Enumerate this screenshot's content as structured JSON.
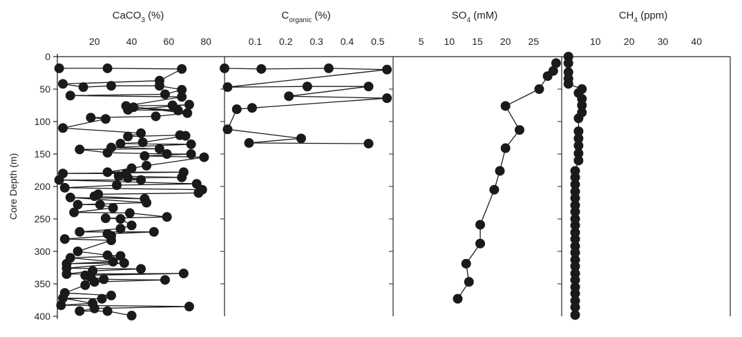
{
  "y_axis": {
    "label": "Core Depth (m)",
    "ticks": [
      0,
      50,
      100,
      150,
      200,
      250,
      300,
      350,
      400
    ],
    "range": [
      0,
      400
    ],
    "inverted": true
  },
  "style": {
    "marker_color": "#1a1a1a",
    "line_color": "#1a1a1a",
    "axis_color": "#222222"
  },
  "chart_data": [
    {
      "type": "line",
      "panel": "caco3",
      "title_main": "CaCO",
      "title_sub": "3",
      "title_tail": " (%)",
      "xlim": [
        0,
        90
      ],
      "xticks": [
        20,
        40,
        60,
        80
      ],
      "y_range": [
        0,
        400
      ],
      "points": [
        {
          "x": 1,
          "y": 18
        },
        {
          "x": 27,
          "y": 18
        },
        {
          "x": 67,
          "y": 19
        },
        {
          "x": 55,
          "y": 37
        },
        {
          "x": 3,
          "y": 42
        },
        {
          "x": 14,
          "y": 47
        },
        {
          "x": 29,
          "y": 45
        },
        {
          "x": 55,
          "y": 45
        },
        {
          "x": 67,
          "y": 51
        },
        {
          "x": 58,
          "y": 58
        },
        {
          "x": 7,
          "y": 60
        },
        {
          "x": 67,
          "y": 62
        },
        {
          "x": 37,
          "y": 76
        },
        {
          "x": 62,
          "y": 75
        },
        {
          "x": 71,
          "y": 74
        },
        {
          "x": 38,
          "y": 82
        },
        {
          "x": 65,
          "y": 83
        },
        {
          "x": 41,
          "y": 78
        },
        {
          "x": 70,
          "y": 87
        },
        {
          "x": 53,
          "y": 92
        },
        {
          "x": 18,
          "y": 94
        },
        {
          "x": 26,
          "y": 96
        },
        {
          "x": 3,
          "y": 110
        },
        {
          "x": 45,
          "y": 118
        },
        {
          "x": 38,
          "y": 123
        },
        {
          "x": 66,
          "y": 121
        },
        {
          "x": 69,
          "y": 122
        },
        {
          "x": 46,
          "y": 132
        },
        {
          "x": 34,
          "y": 134
        },
        {
          "x": 72,
          "y": 135
        },
        {
          "x": 29,
          "y": 140
        },
        {
          "x": 55,
          "y": 142
        },
        {
          "x": 12,
          "y": 143
        },
        {
          "x": 27,
          "y": 148
        },
        {
          "x": 59,
          "y": 150
        },
        {
          "x": 72,
          "y": 150
        },
        {
          "x": 47,
          "y": 153
        },
        {
          "x": 79,
          "y": 155
        },
        {
          "x": 48,
          "y": 168
        },
        {
          "x": 40,
          "y": 172
        },
        {
          "x": 27,
          "y": 178
        },
        {
          "x": 68,
          "y": 178
        },
        {
          "x": 3,
          "y": 180
        },
        {
          "x": 37,
          "y": 180
        },
        {
          "x": 33,
          "y": 184
        },
        {
          "x": 67,
          "y": 186
        },
        {
          "x": 38,
          "y": 187
        },
        {
          "x": 45,
          "y": 190
        },
        {
          "x": 1,
          "y": 190
        },
        {
          "x": 75,
          "y": 196
        },
        {
          "x": 32,
          "y": 198
        },
        {
          "x": 4,
          "y": 202
        },
        {
          "x": 78,
          "y": 205
        },
        {
          "x": 76,
          "y": 210
        },
        {
          "x": 22,
          "y": 212
        },
        {
          "x": 20,
          "y": 215
        },
        {
          "x": 47,
          "y": 219
        },
        {
          "x": 7,
          "y": 217
        },
        {
          "x": 48,
          "y": 225
        },
        {
          "x": 11,
          "y": 228
        },
        {
          "x": 23,
          "y": 228
        },
        {
          "x": 30,
          "y": 233
        },
        {
          "x": 9,
          "y": 240
        },
        {
          "x": 39,
          "y": 241
        },
        {
          "x": 59,
          "y": 247
        },
        {
          "x": 26,
          "y": 249
        },
        {
          "x": 34,
          "y": 250
        },
        {
          "x": 40,
          "y": 260
        },
        {
          "x": 34,
          "y": 265
        },
        {
          "x": 12,
          "y": 270
        },
        {
          "x": 52,
          "y": 270
        },
        {
          "x": 27,
          "y": 273
        },
        {
          "x": 29,
          "y": 276
        },
        {
          "x": 4,
          "y": 281
        },
        {
          "x": 29,
          "y": 283
        },
        {
          "x": 11,
          "y": 300
        },
        {
          "x": 27,
          "y": 306
        },
        {
          "x": 34,
          "y": 307
        },
        {
          "x": 7,
          "y": 310
        },
        {
          "x": 30,
          "y": 316
        },
        {
          "x": 5,
          "y": 319
        },
        {
          "x": 36,
          "y": 318
        },
        {
          "x": 5,
          "y": 326
        },
        {
          "x": 45,
          "y": 327
        },
        {
          "x": 19,
          "y": 330
        },
        {
          "x": 5,
          "y": 335
        },
        {
          "x": 68,
          "y": 334
        },
        {
          "x": 15,
          "y": 337
        },
        {
          "x": 18,
          "y": 340
        },
        {
          "x": 25,
          "y": 343
        },
        {
          "x": 58,
          "y": 344
        },
        {
          "x": 20,
          "y": 347
        },
        {
          "x": 15,
          "y": 352
        },
        {
          "x": 4,
          "y": 364
        },
        {
          "x": 29,
          "y": 368
        },
        {
          "x": 24,
          "y": 373
        },
        {
          "x": 3,
          "y": 372
        },
        {
          "x": 19,
          "y": 380
        },
        {
          "x": 2,
          "y": 383
        },
        {
          "x": 71,
          "y": 385
        },
        {
          "x": 20,
          "y": 388
        },
        {
          "x": 12,
          "y": 392
        },
        {
          "x": 27,
          "y": 392
        },
        {
          "x": 40,
          "y": 399
        }
      ]
    },
    {
      "type": "line",
      "panel": "corganic",
      "title_main": "C",
      "title_sub": "organic",
      "title_tail": " (%)",
      "xlim": [
        0,
        0.55
      ],
      "xticks": [
        0.1,
        0.2,
        0.3,
        0.4,
        0.5
      ],
      "y_range": [
        0,
        400
      ],
      "points": [
        {
          "x": 0.0,
          "y": 18
        },
        {
          "x": 0.12,
          "y": 19
        },
        {
          "x": 0.34,
          "y": 18
        },
        {
          "x": 0.53,
          "y": 20
        },
        {
          "x": 0.01,
          "y": 47
        },
        {
          "x": 0.27,
          "y": 46
        },
        {
          "x": 0.47,
          "y": 46
        },
        {
          "x": 0.21,
          "y": 61
        },
        {
          "x": 0.53,
          "y": 64
        },
        {
          "x": 0.09,
          "y": 79
        },
        {
          "x": 0.04,
          "y": 81
        },
        {
          "x": 0.01,
          "y": 112
        },
        {
          "x": 0.25,
          "y": 126
        },
        {
          "x": 0.08,
          "y": 133
        },
        {
          "x": 0.47,
          "y": 134
        }
      ]
    },
    {
      "type": "line",
      "panel": "so4",
      "title_main": "SO",
      "title_sub": "4",
      "title_tail": " (mM)",
      "xlim": [
        0,
        30
      ],
      "xticks": [
        5,
        10,
        15,
        20,
        25
      ],
      "y_range": [
        0,
        400
      ],
      "points": [
        {
          "x": 29,
          "y": 10
        },
        {
          "x": 28.5,
          "y": 22
        },
        {
          "x": 27.5,
          "y": 30
        },
        {
          "x": 26,
          "y": 50
        },
        {
          "x": 20,
          "y": 76
        },
        {
          "x": 22.5,
          "y": 113
        },
        {
          "x": 20,
          "y": 141
        },
        {
          "x": 19,
          "y": 176
        },
        {
          "x": 18,
          "y": 205
        },
        {
          "x": 15.5,
          "y": 259
        },
        {
          "x": 15.5,
          "y": 288
        },
        {
          "x": 13,
          "y": 319
        },
        {
          "x": 13.5,
          "y": 347
        },
        {
          "x": 11.5,
          "y": 373
        }
      ]
    },
    {
      "type": "line",
      "panel": "ch4",
      "title_main": "CH",
      "title_sub": "4",
      "title_tail": " (ppm)",
      "xlim": [
        0,
        50
      ],
      "xticks": [
        10,
        20,
        30,
        40
      ],
      "y_range": [
        0,
        400
      ],
      "points": [
        {
          "x": 2,
          "y": 0
        },
        {
          "x": 2,
          "y": 10
        },
        {
          "x": 2,
          "y": 24
        },
        {
          "x": 2,
          "y": 34
        },
        {
          "x": 2,
          "y": 42
        },
        {
          "x": 6,
          "y": 50
        },
        {
          "x": 5,
          "y": 56
        },
        {
          "x": 6,
          "y": 65
        },
        {
          "x": 6,
          "y": 75
        },
        {
          "x": 6,
          "y": 86
        },
        {
          "x": 5,
          "y": 95
        },
        {
          "x": 5,
          "y": 115
        },
        {
          "x": 5,
          "y": 126
        },
        {
          "x": 5,
          "y": 137
        },
        {
          "x": 5,
          "y": 149
        },
        {
          "x": 5,
          "y": 160
        },
        {
          "x": 4,
          "y": 176
        },
        {
          "x": 4,
          "y": 186
        },
        {
          "x": 4,
          "y": 197
        },
        {
          "x": 4,
          "y": 208
        },
        {
          "x": 4,
          "y": 218
        },
        {
          "x": 4,
          "y": 229
        },
        {
          "x": 4,
          "y": 239
        },
        {
          "x": 4,
          "y": 250
        },
        {
          "x": 4,
          "y": 260
        },
        {
          "x": 4,
          "y": 271
        },
        {
          "x": 4,
          "y": 281
        },
        {
          "x": 4,
          "y": 292
        },
        {
          "x": 4,
          "y": 302
        },
        {
          "x": 4,
          "y": 313
        },
        {
          "x": 4,
          "y": 323
        },
        {
          "x": 4,
          "y": 334
        },
        {
          "x": 4,
          "y": 344
        },
        {
          "x": 4,
          "y": 355
        },
        {
          "x": 4,
          "y": 365
        },
        {
          "x": 4,
          "y": 376
        },
        {
          "x": 4,
          "y": 386
        },
        {
          "x": 4,
          "y": 398
        }
      ]
    }
  ]
}
